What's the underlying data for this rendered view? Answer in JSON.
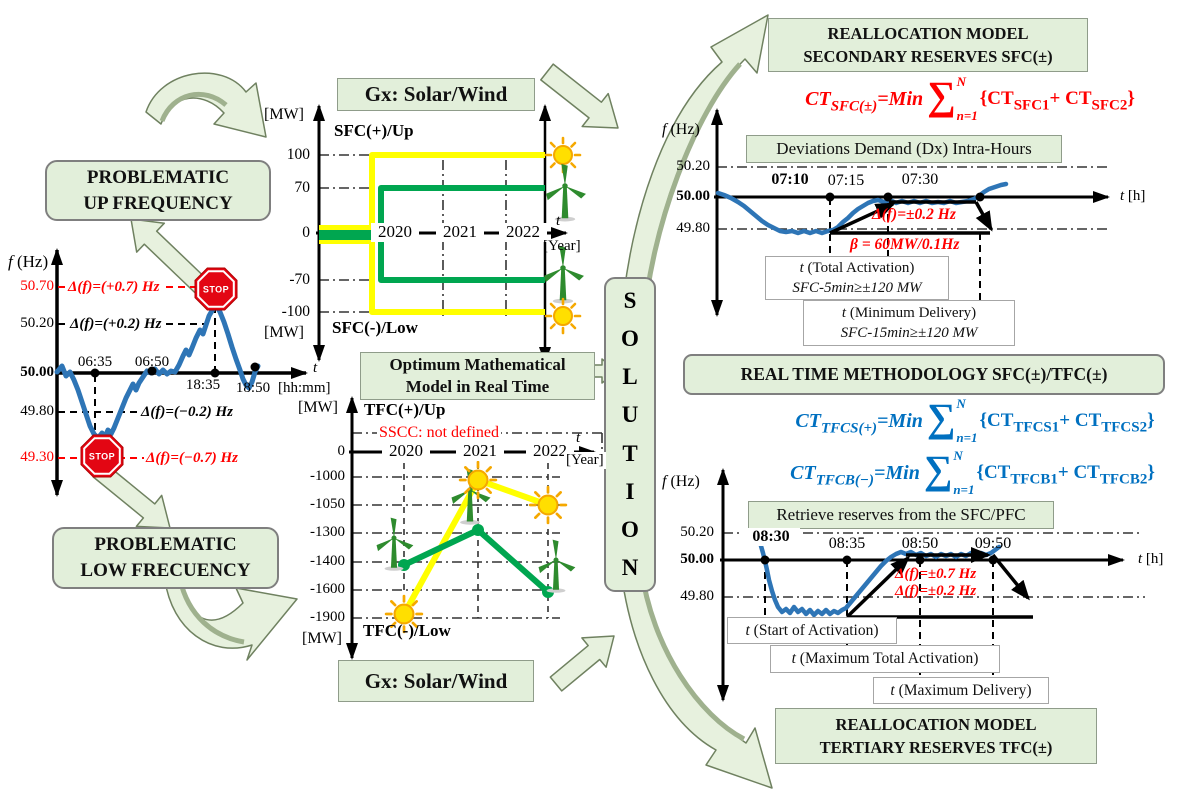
{
  "colors": {
    "box_green": "#e2efda",
    "accent_red": "#ff0000",
    "curve_blue": "#2e75b6",
    "eq_blue": "#0070c0",
    "line_yellow": "#ffff00",
    "line_green": "#00a650"
  },
  "left_chart": {
    "f_label": "f",
    "f_unit": "(Hz)",
    "yticks": [
      "50.70",
      "50.20",
      "50.00",
      "49.80",
      "49.30"
    ],
    "ann_up07": "Δ(f)=(+0.7) Hz",
    "ann_up02": "Δ(f)=(+0.2) Hz",
    "ann_dn02": "Δ(f)=(−0.2) Hz",
    "ann_dn07": "Δ(f)=(−0.7) Hz",
    "xticks": [
      "06:35",
      "06:50",
      "18:35",
      "18:50"
    ],
    "x_t": "t",
    "x_unit": "[hh:mm]",
    "stop": "STOP"
  },
  "flow": {
    "up_line1": "PROBLEMATIC",
    "up_line2": "UP FREQUENCY",
    "low_line1": "PROBLEMATIC",
    "low_line2": "LOW FRECUENCY",
    "solution": [
      "S",
      "O",
      "L",
      "U",
      "T",
      "I",
      "O",
      "N"
    ]
  },
  "sfc_chart": {
    "title": "Gx: Solar/Wind",
    "mw_top": "[MW]",
    "mw_bottom": "[MW]",
    "up_label": "SFC(+)/Up",
    "low_label": "SFC(-)/Low",
    "yticks": [
      "100",
      "70",
      "0",
      "-70",
      "-100"
    ],
    "years": [
      "2020",
      "2021",
      "2022"
    ],
    "x_t": "t",
    "x_unit": "[Year]",
    "series": [
      {
        "name": "solar",
        "up_mw": 100,
        "low_mw": -100
      },
      {
        "name": "wind",
        "up_mw": 70,
        "low_mw": -70
      }
    ]
  },
  "optimum": {
    "line1": "Optimum Mathematical",
    "line2": "Model in Real Time"
  },
  "tfc_chart": {
    "title": "Gx: Solar/Wind",
    "mw_top": "[MW]",
    "mw_bottom": "[MW]",
    "up_label": "TFC(+)/Up",
    "low_label": "TFC(-)/Low",
    "sscc": "SSCC: not defined",
    "yticks": [
      "0",
      "-1000",
      "-1050",
      "-1300",
      "-1400",
      "-1600",
      "-1900"
    ],
    "years": [
      "2020",
      "2021",
      "2022"
    ],
    "x_t": "t",
    "x_unit": "[Year]",
    "series": [
      {
        "name": "solar",
        "values": [
          -1900,
          -1000,
          -1050
        ]
      },
      {
        "name": "wind",
        "values": [
          -1400,
          -1300,
          -1600
        ]
      }
    ]
  },
  "right_top": {
    "box_line1": "REALLOCATION MODEL",
    "box_line2": "SECONDARY RESERVES SFC(±)",
    "eq": {
      "lhs": "CT",
      "lhs_sub": "SFC(±)",
      "min": "=Min",
      "sigma": "∑",
      "top": "N",
      "bot": "n=1",
      "open": "{CT",
      "sub1": "SFC1",
      "plus": "+ CT",
      "sub2": "SFC2",
      "close": "}"
    }
  },
  "chart_a": {
    "f_label": "f",
    "f_unit": "(Hz)",
    "band_label": "Deviations Demand (Dx) Intra-Hours",
    "yticks": [
      "50.20",
      "50.00",
      "49.80"
    ],
    "xticks": [
      "07:10",
      "07:15",
      "07:30"
    ],
    "x_t": "t",
    "x_unit": "[h]",
    "delta": "Δ(f)=±0.2 Hz",
    "beta": "β = 60MW/0.1Hz",
    "box1_l1": "t (Total Activation)",
    "box1_l2": "SFC-5min≥±120 MW",
    "box2_l1": "t (Minimum Delivery)",
    "box2_l2": "SFC-15min≥±120 MW"
  },
  "methodology": {
    "title": "REAL TIME METHODOLOGY SFC(±)/TFC(±)",
    "eq1": {
      "lhs": "CT",
      "lhs_sub": "TFCS(+)",
      "min": "=Min",
      "sigma": "∑",
      "top": "N",
      "bot": "n=1",
      "open": "{CT",
      "sub1": "TFCS1",
      "plus": "+ CT",
      "sub2": "TFCS2",
      "close": "}"
    },
    "eq2": {
      "lhs": "CT",
      "lhs_sub": "TFCB(−)",
      "min": "=Min",
      "sigma": "∑",
      "top": "N",
      "bot": "n=1",
      "open": "{CT",
      "sub1": "TFCB1",
      "plus": "+ CT",
      "sub2": "TFCB2",
      "close": "}"
    }
  },
  "chart_b": {
    "f_label": "f",
    "f_unit": "(Hz)",
    "band_label": "Retrieve reserves from the SFC/PFC",
    "yticks": [
      "50.20",
      "50.00",
      "49.80"
    ],
    "xticks": [
      "08:30",
      "08:35",
      "08:50",
      "09:50"
    ],
    "x_t": "t",
    "x_unit": "[h]",
    "delta1": "Δ(f)=±0.7 Hz",
    "delta2": "Δ(f)=±0.2 Hz",
    "box1": "t (Start of Activation)",
    "box2": "t (Maximum Total Activation)",
    "box3": "t (Maximum Delivery)"
  },
  "right_bottom": {
    "box_line1": "REALLOCATION MODEL",
    "box_line2": "TERTIARY RESERVES TFC(±)"
  }
}
